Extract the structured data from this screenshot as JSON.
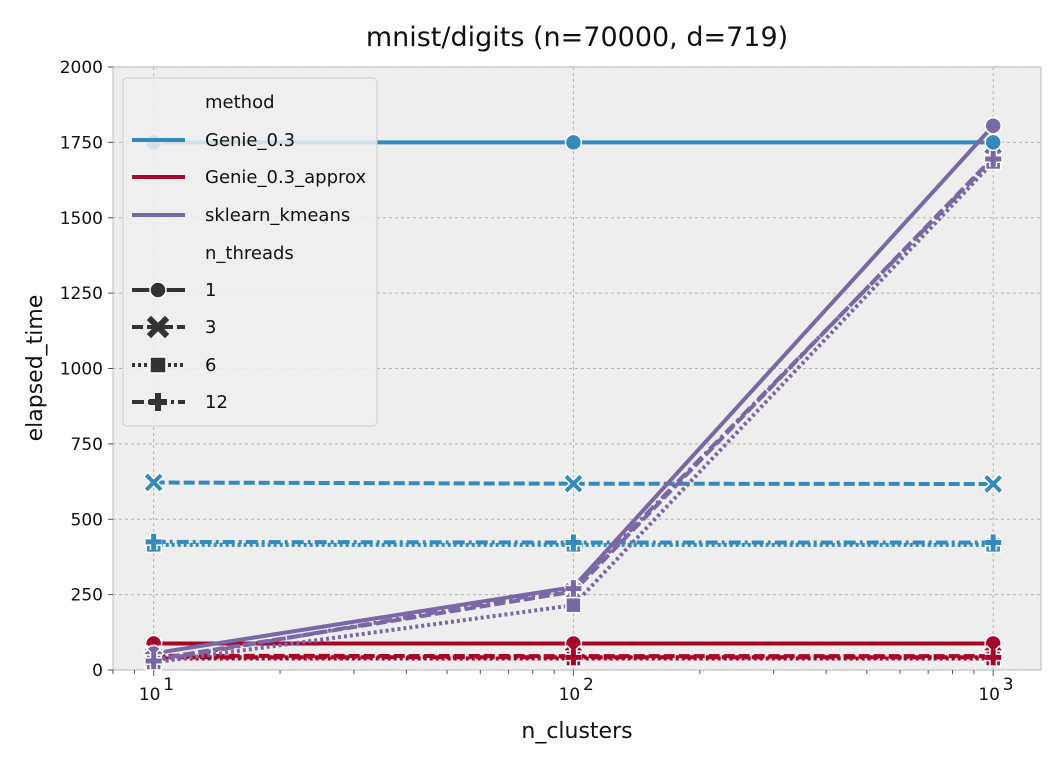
{
  "chart_data": {
    "type": "line",
    "title": "mnist/digits (n=70000, d=719)",
    "xlabel": "n_clusters",
    "ylabel": "elapsed_time",
    "xscale": "log",
    "xticks": [
      10,
      100,
      1000
    ],
    "xtick_labels": [
      {
        "base": "10",
        "exp": "1"
      },
      {
        "base": "10",
        "exp": "2"
      },
      {
        "base": "10",
        "exp": "3"
      }
    ],
    "xlim": [
      8,
      1300
    ],
    "ylim": [
      0,
      2000
    ],
    "yticks": [
      0,
      250,
      500,
      750,
      1000,
      1250,
      1500,
      1750,
      2000
    ],
    "grid": true,
    "legend_position": "upper-left",
    "legend": {
      "hue_title": "method",
      "methods": [
        {
          "name": "Genie_0.3",
          "color": "#348abd"
        },
        {
          "name": "Genie_0.3_approx",
          "color": "#a60628"
        },
        {
          "name": "sklearn_kmeans",
          "color": "#7a68a6"
        }
      ],
      "style_title": "n_threads",
      "threads": [
        {
          "name": "1",
          "marker": "circle",
          "dash": "solid"
        },
        {
          "name": "3",
          "marker": "x",
          "dash": "dashed"
        },
        {
          "name": "6",
          "marker": "square",
          "dash": "dotted"
        },
        {
          "name": "12",
          "marker": "plus",
          "dash": "dashdot"
        }
      ]
    },
    "x": [
      10,
      100,
      1000
    ],
    "series": [
      {
        "method": "Genie_0.3",
        "n_threads": "1",
        "values": [
          1750,
          1750,
          1750
        ]
      },
      {
        "method": "Genie_0.3",
        "n_threads": "3",
        "values": [
          622,
          618,
          617
        ]
      },
      {
        "method": "Genie_0.3",
        "n_threads": "6",
        "values": [
          415,
          415,
          415
        ]
      },
      {
        "method": "Genie_0.3",
        "n_threads": "12",
        "values": [
          425,
          423,
          423
        ]
      },
      {
        "method": "Genie_0.3_approx",
        "n_threads": "1",
        "values": [
          88,
          88,
          88
        ]
      },
      {
        "method": "Genie_0.3_approx",
        "n_threads": "3",
        "values": [
          47,
          46,
          46
        ]
      },
      {
        "method": "Genie_0.3_approx",
        "n_threads": "6",
        "values": [
          38,
          38,
          38
        ]
      },
      {
        "method": "Genie_0.3_approx",
        "n_threads": "12",
        "values": [
          42,
          42,
          42
        ]
      },
      {
        "method": "sklearn_kmeans",
        "n_threads": "1",
        "values": [
          55,
          275,
          1805
        ]
      },
      {
        "method": "sklearn_kmeans",
        "n_threads": "3",
        "values": [
          35,
          260,
          1700
        ]
      },
      {
        "method": "sklearn_kmeans",
        "n_threads": "6",
        "values": [
          25,
          215,
          1685
        ]
      },
      {
        "method": "sklearn_kmeans",
        "n_threads": "12",
        "values": [
          30,
          270,
          1695
        ]
      }
    ]
  }
}
